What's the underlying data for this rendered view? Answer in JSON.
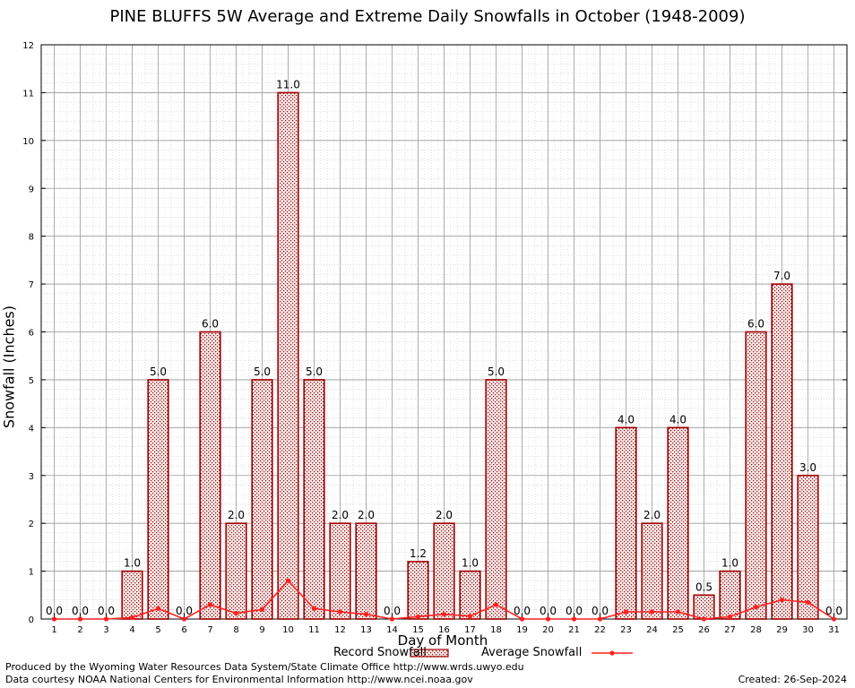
{
  "chart_data": {
    "type": "bar",
    "title": "PINE BLUFFS 5W Average and Extreme Daily Snowfalls in October (1948-2009)",
    "xlabel": "Day of Month",
    "ylabel": "Snowfall (Inches)",
    "ylim": [
      0,
      12
    ],
    "yticks": [
      0,
      1,
      2,
      3,
      4,
      5,
      6,
      7,
      8,
      9,
      10,
      11,
      12
    ],
    "grid": true,
    "legend_position": "bottom",
    "categories": [
      1,
      2,
      3,
      4,
      5,
      6,
      7,
      8,
      9,
      10,
      11,
      12,
      13,
      14,
      15,
      16,
      17,
      18,
      19,
      20,
      21,
      22,
      23,
      24,
      25,
      26,
      27,
      28,
      29,
      30,
      31
    ],
    "series": [
      {
        "name": "Record Snowfall",
        "type": "bar",
        "color": "#a00000",
        "values": [
          0.0,
          0.0,
          0.0,
          1.0,
          5.0,
          0.0,
          6.0,
          2.0,
          5.0,
          11.0,
          5.0,
          2.0,
          2.0,
          0.0,
          1.2,
          2.0,
          1.0,
          5.0,
          0.0,
          0.0,
          0.0,
          0.0,
          4.0,
          2.0,
          4.0,
          0.5,
          1.0,
          6.0,
          7.0,
          3.0,
          0.0
        ],
        "labels": [
          "0.0",
          "0.0",
          "0.0",
          "1.0",
          "5.0",
          "0.0",
          "6.0",
          "2.0",
          "5.0",
          "11.0",
          "5.0",
          "2.0",
          "2.0",
          "0.0",
          "1.2",
          "2.0",
          "1.0",
          "5.0",
          "0.0",
          "0.0",
          "0.0",
          "0.0",
          "4.0",
          "2.0",
          "4.0",
          "0.5",
          "1.0",
          "6.0",
          "7.0",
          "3.0",
          "0.0"
        ]
      },
      {
        "name": "Average Snowfall",
        "type": "line",
        "color": "#ff2020",
        "values": [
          0.0,
          0.0,
          0.0,
          0.03,
          0.22,
          0.0,
          0.3,
          0.12,
          0.2,
          0.8,
          0.22,
          0.15,
          0.1,
          0.0,
          0.05,
          0.1,
          0.06,
          0.3,
          0.0,
          0.0,
          0.0,
          0.0,
          0.15,
          0.15,
          0.15,
          0.0,
          0.05,
          0.25,
          0.4,
          0.35,
          0.0
        ]
      }
    ]
  },
  "footer": {
    "line1": "Produced by the Wyoming Water Resources Data System/State Climate Office http://www.wrds.uwyo.edu",
    "line2": "Data courtesy NOAA National Centers for Environmental Information http://www.ncei.noaa.gov",
    "created": "Created:  26-Sep-2024"
  }
}
